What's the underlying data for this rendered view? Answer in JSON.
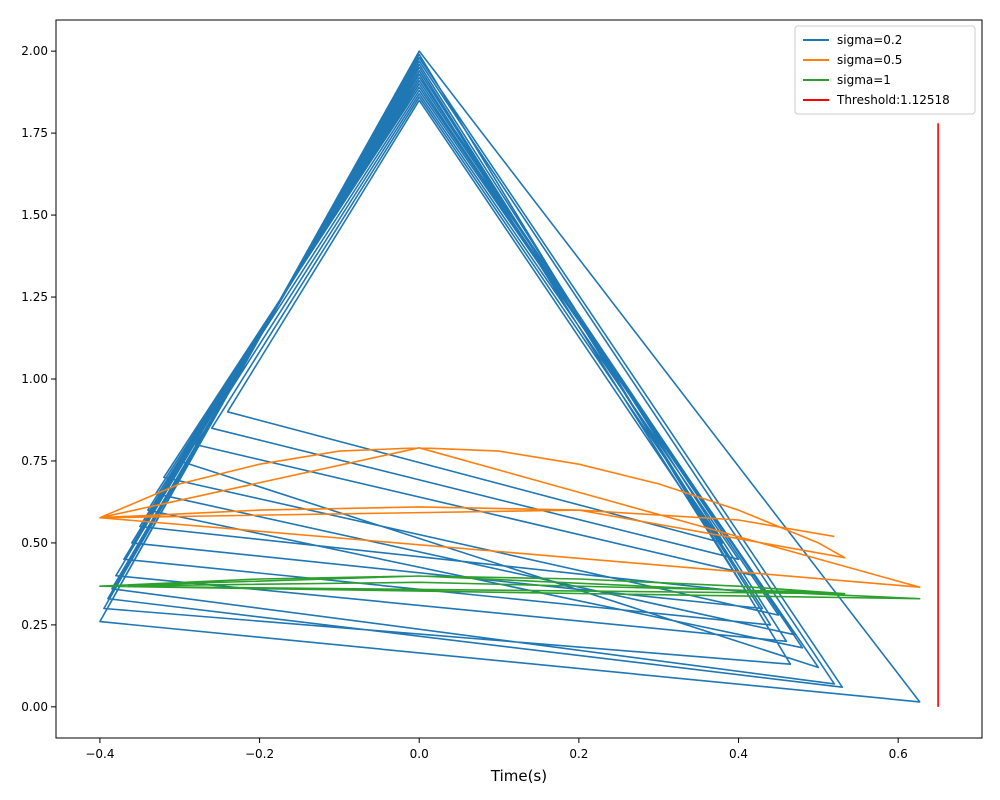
{
  "chart_data": {
    "type": "line",
    "title": "",
    "xlabel": "Time(s)",
    "ylabel": "",
    "xlim": [
      -0.455,
      0.705
    ],
    "ylim": [
      -0.095,
      2.095
    ],
    "xticks": [
      -0.4,
      -0.2,
      0.0,
      0.2,
      0.4,
      0.6
    ],
    "xtick_labels": [
      "−0.4",
      "−0.2",
      "0.0",
      "0.2",
      "0.4",
      "0.6"
    ],
    "yticks": [
      0.0,
      0.25,
      0.5,
      0.75,
      1.0,
      1.25,
      1.5,
      1.75,
      2.0
    ],
    "ytick_labels": [
      "0.00",
      "0.25",
      "0.50",
      "0.75",
      "1.00",
      "1.25",
      "1.50",
      "1.75",
      "2.00"
    ],
    "grid": false,
    "legend_position": "top-right",
    "series": [
      {
        "name": "sigma=0.2",
        "color": "#1f77b4",
        "x": [
          -0.4,
          0.0,
          0.627,
          -0.4,
          0.0,
          0.465,
          -0.395,
          0.0,
          0.53,
          -0.39,
          0.0,
          0.52,
          -0.385,
          0.0,
          0.46,
          -0.38,
          0.0,
          0.44,
          -0.37,
          0.0,
          0.43,
          -0.36,
          0.0,
          0.41,
          -0.35,
          0.0,
          0.48,
          -0.34,
          0.0,
          0.47,
          -0.33,
          0.0,
          0.45,
          -0.32,
          0.0,
          0.5,
          -0.3,
          0.0,
          0.42,
          -0.28,
          0.0,
          0.4,
          -0.26,
          0.0,
          0.38,
          -0.24,
          0.0,
          0.36
        ],
        "y": [
          0.26,
          2.0,
          0.015,
          0.26,
          1.99,
          0.13,
          0.3,
          1.98,
          0.06,
          0.33,
          1.97,
          0.07,
          0.36,
          1.96,
          0.2,
          0.4,
          1.95,
          0.25,
          0.45,
          1.94,
          0.3,
          0.5,
          1.93,
          0.35,
          0.55,
          1.92,
          0.18,
          0.6,
          1.91,
          0.22,
          0.65,
          1.9,
          0.28,
          0.7,
          1.89,
          0.12,
          0.75,
          1.88,
          0.4,
          0.8,
          1.87,
          0.45,
          0.85,
          1.86,
          0.5,
          0.9,
          1.85,
          0.55
        ]
      },
      {
        "name": "sigma=0.5",
        "color": "#ff7f0e",
        "x": [
          -0.4,
          -0.3,
          -0.2,
          -0.1,
          0.0,
          0.1,
          0.2,
          0.3,
          0.4,
          0.5,
          0.533,
          0.2,
          -0.4,
          0.0,
          0.627,
          -0.4,
          -0.2,
          0.0,
          0.2,
          0.4,
          0.52
        ],
        "y": [
          0.577,
          0.68,
          0.74,
          0.78,
          0.79,
          0.78,
          0.74,
          0.68,
          0.6,
          0.5,
          0.455,
          0.6,
          0.577,
          0.79,
          0.365,
          0.577,
          0.6,
          0.61,
          0.6,
          0.57,
          0.52
        ]
      },
      {
        "name": "sigma=1",
        "color": "#2ca02c",
        "x": [
          -0.4,
          -0.2,
          0.0,
          0.2,
          0.4,
          0.533,
          -0.4,
          0.0,
          0.627,
          -0.4,
          0.0,
          0.5
        ],
        "y": [
          0.368,
          0.39,
          0.399,
          0.39,
          0.368,
          0.345,
          0.368,
          0.399,
          0.33,
          0.368,
          0.38,
          0.35
        ]
      },
      {
        "name": "Threshold:1.12518",
        "color": "#ff0000",
        "x": [
          0.65,
          0.65
        ],
        "y": [
          0.0,
          1.78
        ]
      }
    ]
  }
}
